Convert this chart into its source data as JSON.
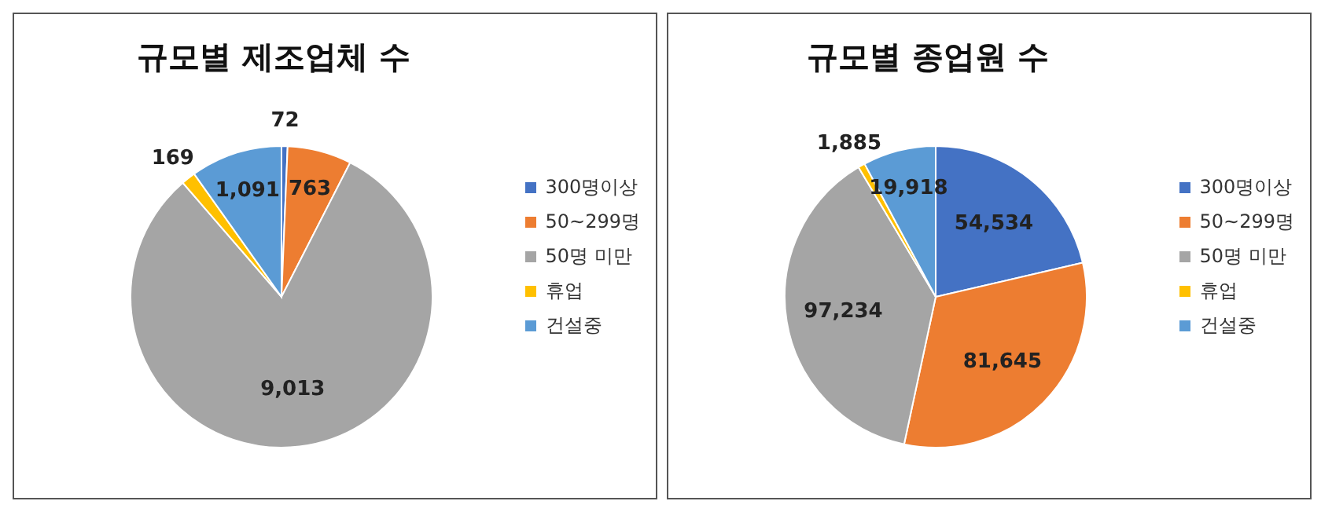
{
  "chart_data": [
    {
      "type": "pie",
      "title": "규모별 제조업체 수",
      "categories": [
        "300명이상",
        "50~299명",
        "50명 미만",
        "휴업",
        "건설중"
      ],
      "values": [
        72,
        763,
        9013,
        169,
        1091
      ],
      "value_labels": [
        "72",
        "763",
        "9,013",
        "169",
        "1,091"
      ],
      "colors": [
        "#4472c4",
        "#ed7d31",
        "#a5a5a5",
        "#ffc000",
        "#5b9bd5"
      ],
      "legend": "right"
    },
    {
      "type": "pie",
      "title": "규모별 종업원 수",
      "categories": [
        "300명이상",
        "50~299명",
        "50명 미만",
        "휴업",
        "건설중"
      ],
      "values": [
        54534,
        81645,
        97234,
        1885,
        19918
      ],
      "value_labels": [
        "54,534",
        "81,645",
        "97,234",
        "1,885",
        "19,918"
      ],
      "colors": [
        "#4472c4",
        "#ed7d31",
        "#a5a5a5",
        "#ffc000",
        "#5b9bd5"
      ],
      "legend": "right"
    }
  ]
}
